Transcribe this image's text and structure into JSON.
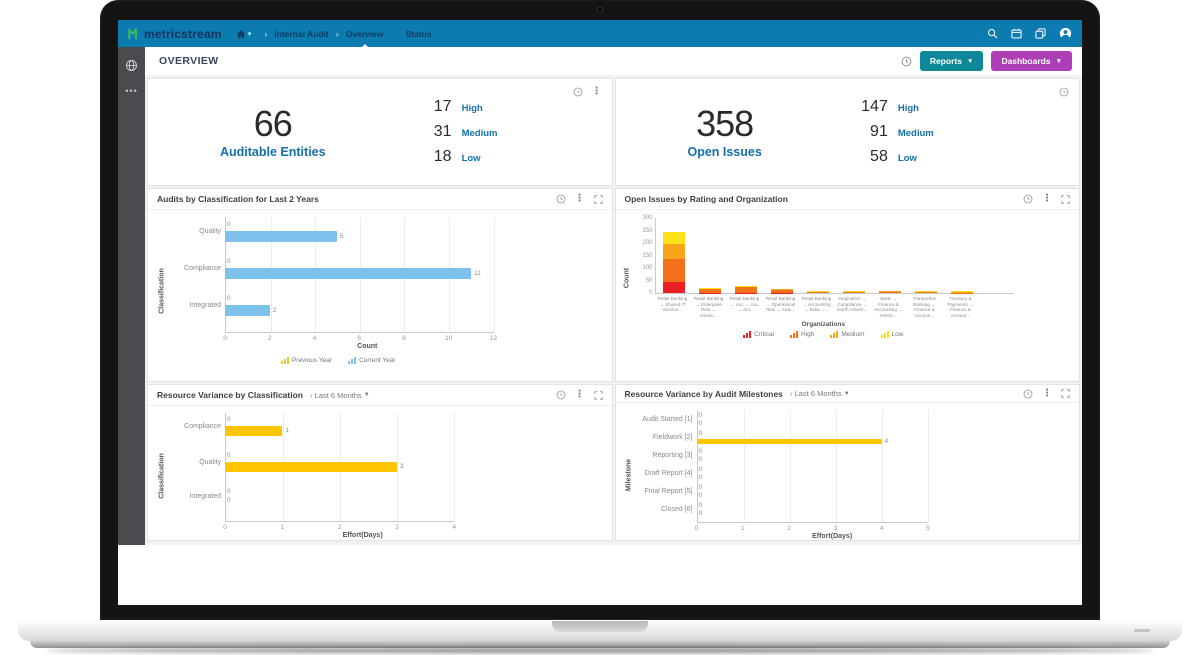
{
  "navbar": {
    "logo": "metricstream",
    "breadcrumb": {
      "section": "Internal Audit",
      "page": "Overview"
    },
    "tab_status": "Status",
    "right_icons": [
      "search-icon",
      "calendar-icon",
      "tags-icon",
      "profile-icon"
    ]
  },
  "sidebar": {
    "icons": [
      "globe-icon",
      "more-dots-icon"
    ]
  },
  "header": {
    "title": "OVERVIEW",
    "reports_label": "Reports",
    "dashboards_label": "Dashboards"
  },
  "kpis": [
    {
      "value": "66",
      "label": "Auditable Entities",
      "stats": [
        {
          "value": "17",
          "label": "High"
        },
        {
          "value": "31",
          "label": "Medium"
        },
        {
          "value": "18",
          "label": "Low"
        }
      ]
    },
    {
      "value": "358",
      "label": "Open Issues",
      "stats": [
        {
          "value": "147",
          "label": "High"
        },
        {
          "value": "91",
          "label": "Medium"
        },
        {
          "value": "58",
          "label": "Low"
        }
      ]
    }
  ],
  "chart_data": [
    {
      "type": "bar",
      "orientation": "horizontal",
      "title": "Audits by Classification for Last 2 Years",
      "categories": [
        "Quality",
        "Compliance",
        "Integrated"
      ],
      "series": [
        {
          "name": "Previous Year",
          "color": "#f5c832",
          "values": [
            0,
            0,
            0
          ]
        },
        {
          "name": "Current Year",
          "color": "#7dc2ed",
          "values": [
            5,
            11,
            2
          ]
        }
      ],
      "xlabel": "Count",
      "ylabel": "Classification",
      "xlim": [
        0,
        12
      ],
      "xticks": [
        0,
        2,
        4,
        6,
        8,
        10,
        12
      ],
      "legend_position": "bottom"
    },
    {
      "type": "bar",
      "subtype": "stacked",
      "orientation": "vertical",
      "title": "Open Issues by Rating and Organization",
      "categories": [
        "Retail Banking → Shared IT Service...",
        "Retail Banking → Enterprise Risk → Americ...",
        "Retail Banking → ALL → ALL → ALL",
        "Retail Banking → Operational Risk → Ame...",
        "Retail Banking → Accounting → India →...",
        "Origination → Compliance → North Americ...",
        "Bank → Finance & Accounting → Americ...",
        "Transaction Banking → Finance & Accoun...",
        "Treasury & Payments → Finance & Accoun..."
      ],
      "series": [
        {
          "name": "Critical",
          "color": "#ea1e25",
          "values": [
            45,
            2,
            2,
            1,
            0,
            0,
            0,
            0,
            0
          ]
        },
        {
          "name": "High",
          "color": "#f3711b",
          "values": [
            90,
            12,
            20,
            10,
            4,
            4,
            4,
            3,
            2
          ]
        },
        {
          "name": "Medium",
          "color": "#f8a51b",
          "values": [
            60,
            3,
            3,
            3,
            2,
            2,
            3,
            2,
            2
          ]
        },
        {
          "name": "Low",
          "color": "#ffe11a",
          "values": [
            45,
            3,
            3,
            2,
            2,
            3,
            2,
            4,
            5
          ]
        }
      ],
      "xlabel": "Organizations",
      "ylabel": "Count",
      "ylim": [
        0,
        300
      ],
      "yticks": [
        0,
        50,
        100,
        150,
        200,
        250,
        300
      ],
      "legend_position": "bottom"
    },
    {
      "type": "bar",
      "orientation": "horizontal",
      "title": "Resource Variance by Classification",
      "filter": "Last 6 Months",
      "categories": [
        "Compliance",
        "Quality",
        "Integrated"
      ],
      "series": [
        {
          "color": null,
          "values": [
            0,
            0,
            0
          ]
        },
        {
          "color": "#fdc400",
          "values": [
            1,
            3,
            0
          ]
        }
      ],
      "xlabel": "Effort(Days)",
      "ylabel": "Classification",
      "xlim": [
        0,
        4
      ],
      "xticks": [
        0,
        1,
        2,
        3,
        4
      ],
      "legend_position": "none"
    },
    {
      "type": "bar",
      "orientation": "horizontal",
      "title": "Resource Variance by Audit Milestones",
      "filter": "Last 6 Months",
      "categories": [
        "Audit Started [1]",
        "Fieldwork [2]",
        "Reporting [3]",
        "Draft Report [4]",
        "Final Report [5]",
        "Closed [6]"
      ],
      "series": [
        {
          "color": null,
          "values": [
            0,
            0,
            0,
            0,
            0,
            0
          ]
        },
        {
          "color": "#fdc400",
          "values": [
            0,
            4,
            0,
            0,
            0,
            0
          ]
        }
      ],
      "xlabel": "Effort(Days)",
      "ylabel": "Milestone",
      "xlim": [
        0,
        5
      ],
      "xticks": [
        0,
        1,
        2,
        3,
        4,
        5
      ],
      "legend_position": "none"
    }
  ]
}
